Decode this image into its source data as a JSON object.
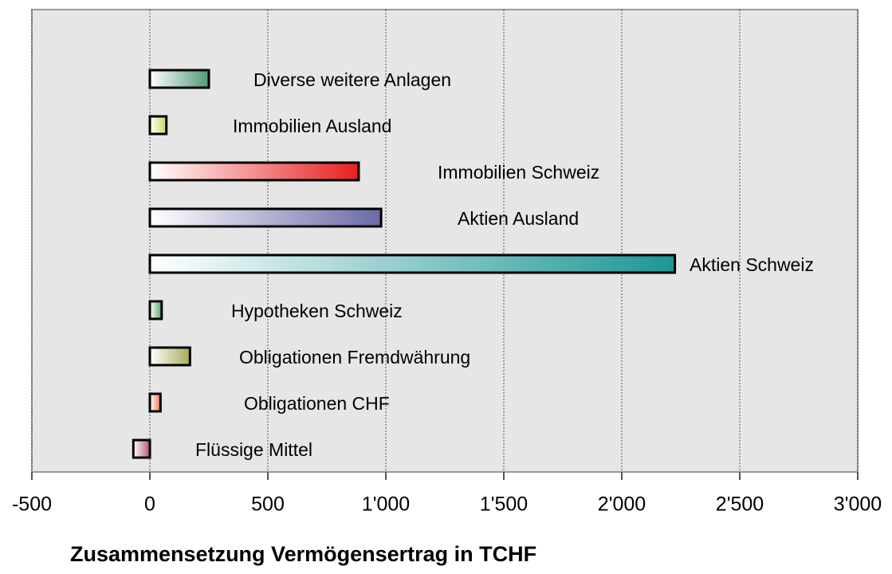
{
  "chart_data": {
    "type": "barh",
    "title": "Zusammensetzung Vermögensertrag in TCHF",
    "categories": [
      "Diverse weitere Anlagen",
      "Immobilien Ausland",
      "Immobilien Schweiz",
      "Aktien Ausland",
      "Aktien Schweiz",
      "Hypotheken Schweiz",
      "Obligationen Fremdwährung",
      "Obligationen CHF",
      "Flüssige Mittel"
    ],
    "values": [
      250,
      70,
      885,
      980,
      2225,
      50,
      170,
      45,
      -70
    ],
    "colors": [
      "#4f9a78",
      "#c6dc62",
      "#e81e1e",
      "#6a6aa6",
      "#1e9696",
      "#58aa6a",
      "#aaaa58",
      "#ee7a5a",
      "#b85a6a"
    ],
    "xlim": [
      -500,
      3000
    ],
    "xticks": [
      -500,
      0,
      500,
      {
        "value": 1000,
        "label": "1'000"
      },
      {
        "value": 1500,
        "label": "1'500"
      },
      {
        "value": 2000,
        "label": "2'000"
      },
      {
        "value": 2500,
        "label": "2'500"
      },
      {
        "value": 3000,
        "label": "3'000"
      }
    ],
    "grid": true
  }
}
